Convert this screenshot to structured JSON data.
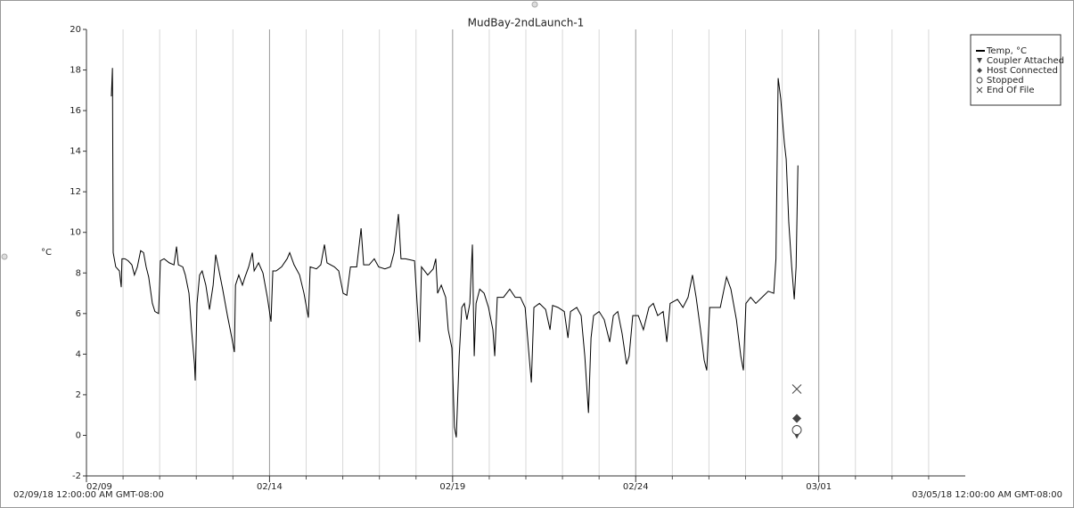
{
  "chart_data": {
    "type": "line",
    "title": "MudBay-2ndLaunch-1",
    "y_label": "°C",
    "range_labels": [
      "02/09/18 12:00:00 AM GMT-08:00",
      "03/05/18 12:00:00 AM GMT-08:00"
    ],
    "xlim": [
      0,
      24
    ],
    "xticks": [
      {
        "value": 0,
        "label": "02/09"
      },
      {
        "value": 5,
        "label": "02/14"
      },
      {
        "value": 10,
        "label": "02/19"
      },
      {
        "value": 15,
        "label": "02/24"
      },
      {
        "value": 20,
        "label": "03/01"
      }
    ],
    "xminorticks": [
      1,
      2,
      3,
      4,
      6,
      7,
      8,
      9,
      11,
      12,
      13,
      14,
      16,
      17,
      18,
      19,
      21,
      22,
      23
    ],
    "ylim": [
      -2,
      20
    ],
    "yticks": [
      -2,
      0,
      2,
      4,
      6,
      8,
      10,
      12,
      14,
      16,
      18,
      20
    ],
    "grid": true,
    "legend": "upper right",
    "series": [
      {
        "name": "Temp, °C",
        "color": "#000000",
        "marker": "line",
        "x": [
          0.68,
          0.71,
          0.73,
          0.8,
          0.9,
          0.95,
          0.97,
          1.05,
          1.14,
          1.24,
          1.31,
          1.39,
          1.48,
          1.56,
          1.63,
          1.7,
          1.8,
          1.87,
          1.97,
          2.02,
          2.12,
          2.26,
          2.39,
          2.46,
          2.51,
          2.63,
          2.7,
          2.8,
          2.87,
          2.95,
          2.97,
          3.02,
          3.09,
          3.16,
          3.26,
          3.36,
          3.46,
          3.53,
          3.6,
          3.72,
          3.85,
          3.97,
          4.04,
          4.07,
          4.16,
          4.26,
          4.33,
          4.43,
          4.53,
          4.58,
          4.7,
          4.82,
          4.94,
          5.04,
          5.09,
          5.18,
          5.33,
          5.48,
          5.55,
          5.67,
          5.82,
          5.94,
          6.06,
          6.11,
          6.28,
          6.4,
          6.5,
          6.57,
          6.77,
          6.89,
          7.01,
          7.11,
          7.21,
          7.38,
          7.5,
          7.57,
          7.72,
          7.86,
          7.98,
          8.15,
          8.3,
          8.4,
          8.52,
          8.59,
          8.71,
          8.96,
          9.03,
          9.1,
          9.15,
          9.32,
          9.47,
          9.54,
          9.59,
          9.69,
          9.81,
          9.88,
          9.98,
          10.05,
          10.1,
          10.18,
          10.25,
          10.32,
          10.39,
          10.47,
          10.54,
          10.59,
          10.64,
          10.74,
          10.86,
          10.98,
          11.1,
          11.15,
          11.22,
          11.39,
          11.56,
          11.71,
          11.85,
          11.98,
          12.07,
          12.15,
          12.22,
          12.37,
          12.54,
          12.66,
          12.73,
          12.88,
          13.05,
          13.15,
          13.22,
          13.39,
          13.51,
          13.61,
          13.71,
          13.78,
          13.85,
          14.0,
          14.14,
          14.29,
          14.39,
          14.51,
          14.63,
          14.75,
          14.82,
          14.92,
          15.07,
          15.21,
          15.36,
          15.48,
          15.6,
          15.75,
          15.85,
          15.94,
          16.14,
          16.29,
          16.43,
          16.55,
          16.65,
          16.77,
          16.87,
          16.94,
          17.02,
          17.16,
          17.31,
          17.48,
          17.6,
          17.75,
          17.87,
          17.94,
          18.01,
          18.14,
          18.28,
          18.45,
          18.62,
          18.77,
          18.83,
          18.89,
          18.96,
          19.06,
          19.11,
          19.18,
          19.26,
          19.33,
          19.38,
          19.43
        ],
        "values": [
          16.7,
          18.1,
          9.0,
          8.3,
          8.1,
          7.3,
          8.7,
          8.7,
          8.6,
          8.4,
          7.9,
          8.3,
          9.1,
          9.0,
          8.3,
          7.8,
          6.5,
          6.1,
          6.0,
          8.6,
          8.7,
          8.5,
          8.4,
          9.3,
          8.4,
          8.3,
          7.9,
          7.0,
          5.2,
          3.5,
          2.7,
          6.5,
          7.9,
          8.1,
          7.4,
          6.2,
          7.4,
          8.9,
          8.3,
          7.2,
          5.9,
          4.8,
          4.1,
          7.4,
          7.9,
          7.4,
          7.8,
          8.3,
          9.0,
          8.1,
          8.5,
          8.0,
          6.8,
          5.6,
          8.1,
          8.1,
          8.3,
          8.7,
          9.0,
          8.4,
          7.9,
          7.0,
          5.8,
          8.3,
          8.2,
          8.4,
          9.4,
          8.5,
          8.3,
          8.1,
          7.0,
          6.9,
          8.3,
          8.3,
          10.2,
          8.4,
          8.4,
          8.7,
          8.3,
          8.2,
          8.3,
          9.0,
          10.9,
          8.7,
          8.7,
          8.6,
          6.5,
          4.6,
          8.3,
          7.9,
          8.2,
          8.7,
          7.0,
          7.4,
          6.8,
          5.2,
          4.3,
          0.4,
          -0.1,
          3.9,
          6.3,
          6.5,
          5.7,
          6.5,
          9.4,
          3.9,
          6.5,
          7.2,
          7.0,
          6.3,
          5.2,
          3.9,
          6.8,
          6.8,
          7.2,
          6.8,
          6.8,
          6.3,
          4.3,
          2.6,
          6.3,
          6.5,
          6.2,
          5.2,
          6.4,
          6.3,
          6.1,
          4.8,
          6.1,
          6.3,
          5.9,
          3.9,
          1.1,
          4.8,
          5.9,
          6.1,
          5.7,
          4.6,
          5.9,
          6.1,
          5.0,
          3.5,
          3.9,
          5.9,
          5.9,
          5.2,
          6.3,
          6.5,
          5.9,
          6.1,
          4.6,
          6.5,
          6.7,
          6.3,
          6.8,
          7.9,
          6.8,
          5.2,
          3.7,
          3.2,
          6.3,
          6.3,
          6.3,
          7.8,
          7.2,
          5.7,
          3.9,
          3.2,
          6.5,
          6.8,
          6.5,
          6.8,
          7.1,
          7.0,
          8.7,
          17.6,
          16.6,
          14.4,
          13.6,
          10.5,
          8.3,
          6.7,
          8.3,
          13.3
        ]
      },
      {
        "name": "Coupler Attached",
        "color": "#444444",
        "marker": "triangle-down",
        "x": [
          19.4
        ],
        "values": [
          0.04
        ]
      },
      {
        "name": "Host Connected",
        "color": "#444444",
        "marker": "diamond",
        "x": [
          19.4
        ],
        "values": [
          0.83
        ]
      },
      {
        "name": "Stopped",
        "color": "#444444",
        "marker": "circle",
        "x": [
          19.4
        ],
        "values": [
          0.26
        ]
      },
      {
        "name": "End Of File",
        "color": "#444444",
        "marker": "x",
        "x": [
          19.4
        ],
        "values": [
          2.28
        ]
      }
    ]
  }
}
